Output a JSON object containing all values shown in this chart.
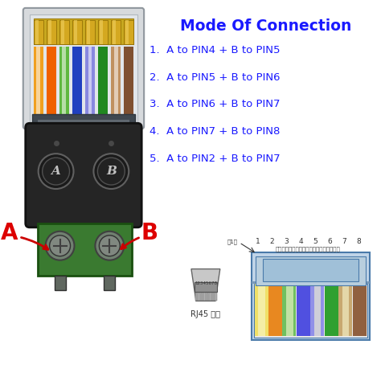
{
  "title": "Mode Of Connection",
  "title_color": "#1a1aff",
  "title_fontsize": 13.5,
  "bg_color": "#ffffff",
  "connection_lines": [
    "1.  A to PIN4 + B to PIN5",
    "2.  A to PIN5 + B to PIN6",
    "3.  A to PIN6 + B to PIN7",
    "4.  A to PIN7 + B to PIN8",
    "5.  A to PIN2 + B to PIN7"
  ],
  "text_color": "#1a1aff",
  "text_fontsize": 9.5,
  "label_A_color": "#dd0000",
  "label_B_color": "#dd0000",
  "pin_labels": [
    "1",
    "2",
    "3",
    "4",
    "5",
    "6",
    "7",
    "8"
  ],
  "chinese_labels": "橙白、橙、绻白、蓝、蓝白、绻、棕白、棕",
  "wire_colors": [
    "#f0e060",
    "#f0a030",
    "#90c860",
    "#7070cc",
    "#c8c8f8",
    "#50a050",
    "#c0a878",
    "#a07040"
  ],
  "rj45_label": "RJ45 插头",
  "first_pin_label": "第1脚"
}
